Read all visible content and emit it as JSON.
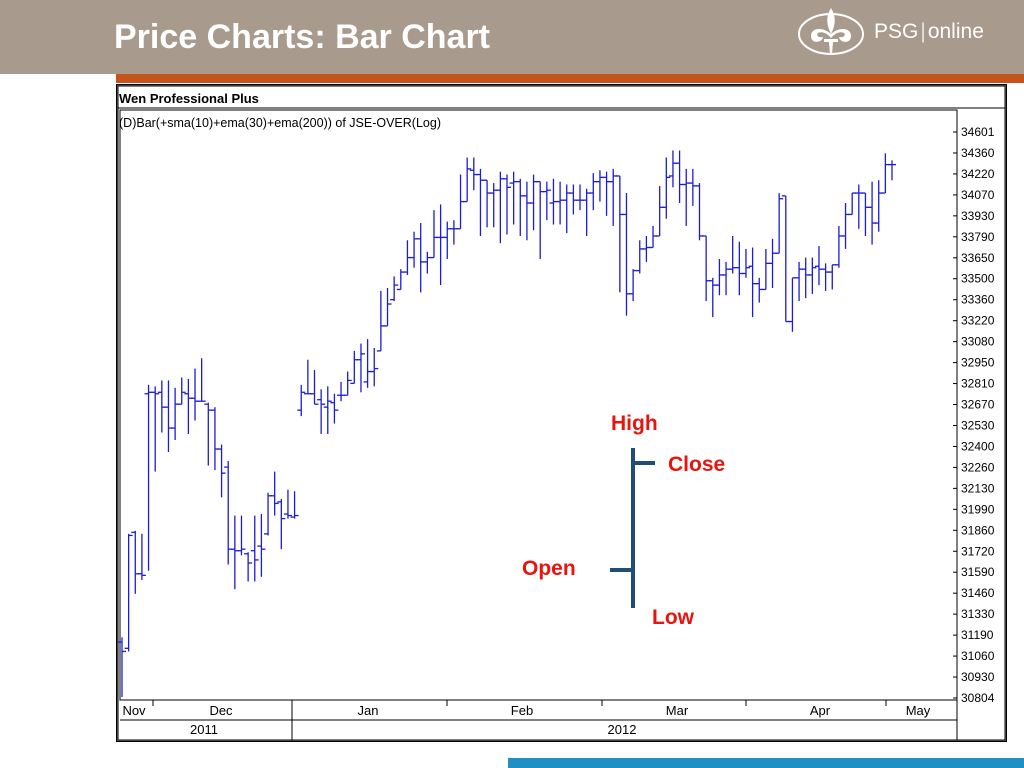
{
  "slide": {
    "title": "Price Charts: Bar Chart",
    "logo_word1": "PSG",
    "logo_separator": "|",
    "logo_word2": "online"
  },
  "colors": {
    "header": "#a89a8c",
    "accent": "#c5531c",
    "bar_series": "#1c1cd4",
    "annotation_text": "#e8140e",
    "annotation_bar": "#1f4e79",
    "bottom_bar": "#1f8fc4"
  },
  "chart_data": {
    "type": "bar",
    "software_title": "Wen Professional Plus",
    "title": "(D)Bar(+sma(10)+ema(30)+ema(200)) of JSE-OVER(Log)",
    "y_scale": "log",
    "ylim": [
      30804,
      34601
    ],
    "y_ticks": [
      "34601",
      "34360",
      "34220",
      "34070",
      "33930",
      "33790",
      "33650",
      "33500",
      "33360",
      "33220",
      "33080",
      "32950",
      "32810",
      "32670",
      "32530",
      "32400",
      "32260",
      "32130",
      "31990",
      "31860",
      "31720",
      "31590",
      "31460",
      "31330",
      "31190",
      "31060",
      "30930",
      "30804"
    ],
    "x_month_labels": [
      "Nov",
      "Dec",
      "Jan",
      "Feb",
      "Mar",
      "Apr",
      "May"
    ],
    "x_year_labels": [
      "2011",
      "2012"
    ],
    "legend_diagram": {
      "high": "High",
      "close": "Close",
      "open": "Open",
      "low": "Low"
    },
    "series": [
      {
        "ohlc_fields": [
          "open",
          "high",
          "low",
          "close"
        ],
        "bars": [
          [
            31160,
            31190,
            30810,
            31100
          ],
          [
            31120,
            31860,
            31100,
            31850
          ],
          [
            31870,
            31880,
            31470,
            31600
          ],
          [
            31600,
            31860,
            31560,
            31590
          ],
          [
            32790,
            32850,
            31620,
            32800
          ],
          [
            32800,
            32840,
            32270,
            32790
          ],
          [
            32800,
            32880,
            32530,
            32700
          ],
          [
            32700,
            32880,
            32400,
            32560
          ],
          [
            32560,
            32830,
            32480,
            32720
          ],
          [
            32720,
            32900,
            32760,
            32800
          ],
          [
            32790,
            32890,
            32520,
            32760
          ],
          [
            32760,
            32960,
            32610,
            32740
          ],
          [
            32740,
            33030,
            32740,
            32740
          ],
          [
            32720,
            32730,
            32310,
            32680
          ],
          [
            32680,
            32700,
            32280,
            32420
          ],
          [
            32420,
            32450,
            32100,
            32260
          ],
          [
            32300,
            32340,
            31660,
            31760
          ],
          [
            31760,
            31980,
            31500,
            31750
          ],
          [
            31750,
            31980,
            31720,
            31760
          ],
          [
            31730,
            31740,
            31550,
            31670
          ],
          [
            31750,
            31980,
            31550,
            31690
          ],
          [
            31780,
            31990,
            31580,
            31760
          ],
          [
            31860,
            32130,
            31850,
            32110
          ],
          [
            32110,
            32270,
            31980,
            32060
          ],
          [
            32070,
            32090,
            31760,
            31960
          ],
          [
            31990,
            32150,
            31960,
            31980
          ],
          [
            31970,
            32140,
            31960,
            31980
          ],
          [
            32680,
            32850,
            32640,
            32800
          ],
          [
            32790,
            33020,
            32800,
            32790
          ],
          [
            32790,
            32950,
            32720,
            32720
          ],
          [
            32750,
            32820,
            32520,
            32720
          ],
          [
            32700,
            32840,
            32520,
            32740
          ],
          [
            32730,
            32790,
            32590,
            32680
          ],
          [
            32780,
            32870,
            32740,
            32780
          ],
          [
            32780,
            32940,
            32850,
            32880
          ],
          [
            32860,
            33080,
            32900,
            33020
          ],
          [
            33020,
            33130,
            32800,
            33060
          ],
          [
            32870,
            33160,
            32830,
            32940
          ],
          [
            32940,
            33100,
            32840,
            32960
          ],
          [
            33080,
            33490,
            33180,
            33250
          ],
          [
            33250,
            33510,
            33280,
            33400
          ],
          [
            33430,
            33590,
            33420,
            33530
          ],
          [
            33500,
            33640,
            33500,
            33620
          ],
          [
            33620,
            33840,
            33600,
            33720
          ],
          [
            33720,
            33900,
            33650,
            33850
          ],
          [
            33850,
            33960,
            33480,
            33690
          ],
          [
            33690,
            33760,
            33610,
            33720
          ],
          [
            33720,
            34050,
            33730,
            33860
          ],
          [
            33860,
            34090,
            33530,
            33860
          ],
          [
            33860,
            33970,
            33710,
            33920
          ],
          [
            33920,
            33980,
            33810,
            33920
          ],
          [
            33920,
            34300,
            33920,
            34110
          ],
          [
            34110,
            34420,
            34180,
            34340
          ],
          [
            34330,
            34420,
            34190,
            34300
          ],
          [
            34300,
            34340,
            33870,
            34260
          ],
          [
            34260,
            34260,
            33930,
            34170
          ],
          [
            34170,
            34240,
            33930,
            34190
          ],
          [
            34190,
            34320,
            33820,
            34270
          ],
          [
            34270,
            34300,
            33880,
            34210
          ],
          [
            34240,
            34320,
            33950,
            34250
          ],
          [
            34250,
            34270,
            33870,
            34150
          ],
          [
            34150,
            34250,
            33840,
            34100
          ],
          [
            34100,
            34300,
            33910,
            34250
          ],
          [
            34250,
            34250,
            33710,
            34180
          ],
          [
            34180,
            34250,
            33980,
            34190
          ],
          [
            34100,
            34270,
            33950,
            34110
          ],
          [
            34110,
            34250,
            33950,
            34120
          ],
          [
            34120,
            34230,
            33890,
            34170
          ],
          [
            34170,
            34230,
            34020,
            34120
          ],
          [
            34120,
            34230,
            34050,
            34120
          ],
          [
            34120,
            34200,
            33870,
            34170
          ],
          [
            34170,
            34310,
            34050,
            34250
          ],
          [
            34250,
            34330,
            34110,
            34280
          ],
          [
            34280,
            34320,
            34010,
            34250
          ],
          [
            34250,
            34340,
            33940,
            34290
          ],
          [
            34290,
            34060,
            33480,
            34020
          ],
          [
            34020,
            34170,
            33320,
            33470
          ],
          [
            33470,
            33640,
            33420,
            33630
          ],
          [
            33630,
            33840,
            33610,
            33780
          ],
          [
            33780,
            33870,
            33690,
            33790
          ],
          [
            33790,
            33940,
            33840,
            33870
          ],
          [
            33870,
            34220,
            33950,
            34070
          ],
          [
            34070,
            34420,
            33990,
            34280
          ],
          [
            34290,
            34470,
            34210,
            34380
          ],
          [
            34380,
            34470,
            34100,
            34230
          ],
          [
            34230,
            34340,
            33940,
            34240
          ],
          [
            34240,
            34340,
            34080,
            34220
          ],
          [
            34220,
            34240,
            33840,
            33870
          ],
          [
            33870,
            33840,
            33420,
            33560
          ],
          [
            33560,
            33580,
            33310,
            33530
          ],
          [
            33530,
            33710,
            33460,
            33600
          ],
          [
            33600,
            33690,
            33460,
            33640
          ],
          [
            33640,
            33870,
            33610,
            33650
          ],
          [
            33650,
            33830,
            33460,
            33610
          ],
          [
            33610,
            33780,
            33580,
            33650
          ],
          [
            33660,
            33790,
            33310,
            33540
          ],
          [
            33540,
            33580,
            33410,
            33500
          ],
          [
            33500,
            33780,
            33650,
            33680
          ],
          [
            33680,
            33850,
            33510,
            33750
          ],
          [
            33750,
            34170,
            33830,
            34130
          ],
          [
            34150,
            34130,
            33340,
            33280
          ],
          [
            33280,
            33580,
            33210,
            33580
          ],
          [
            33580,
            33690,
            33420,
            33640
          ],
          [
            33640,
            33720,
            33440,
            33600
          ],
          [
            33600,
            33720,
            33470,
            33650
          ],
          [
            33660,
            33800,
            33530,
            33640
          ],
          [
            33640,
            33680,
            33490,
            33620
          ],
          [
            33620,
            33670,
            33500,
            33670
          ],
          [
            33670,
            33940,
            33650,
            33870
          ],
          [
            33870,
            34100,
            33780,
            34020
          ],
          [
            34020,
            34170,
            34070,
            34170
          ],
          [
            34170,
            34230,
            33920,
            34170
          ],
          [
            34170,
            34120,
            33870,
            34070
          ],
          [
            34070,
            34250,
            33810,
            33960
          ],
          [
            33960,
            34260,
            33900,
            34170
          ],
          [
            34170,
            34450,
            34170,
            34370
          ],
          [
            34370,
            34400,
            34260,
            34370
          ]
        ]
      }
    ]
  }
}
